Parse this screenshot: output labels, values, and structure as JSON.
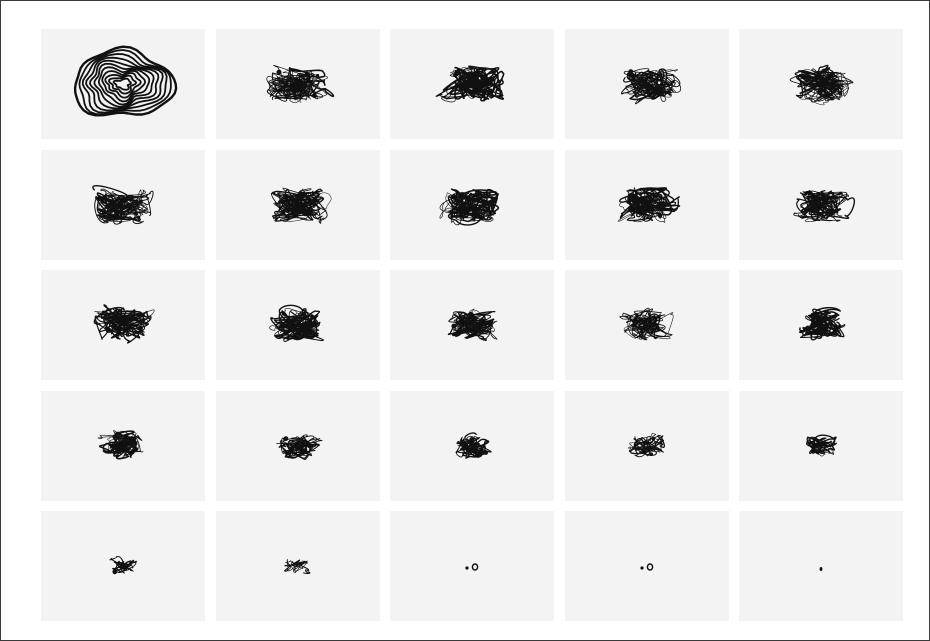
{
  "artwork": {
    "grid": {
      "columns": 5,
      "rows": 5
    },
    "tile_background": "#f3f3f3",
    "ink_color": "#111111",
    "sequence": [
      {
        "stage": 1,
        "form": "concentric-contour-lines",
        "density": 1.0
      },
      {
        "stage": 2,
        "form": "tangled-scribble",
        "density": 0.92
      },
      {
        "stage": 3,
        "form": "tangled-scribble",
        "density": 0.9
      },
      {
        "stage": 4,
        "form": "tangled-scribble",
        "density": 0.9
      },
      {
        "stage": 5,
        "form": "tangled-scribble",
        "density": 0.92
      },
      {
        "stage": 6,
        "form": "tangled-scribble",
        "density": 0.88
      },
      {
        "stage": 7,
        "form": "tangled-scribble",
        "density": 0.85
      },
      {
        "stage": 8,
        "form": "tangled-scribble",
        "density": 0.86
      },
      {
        "stage": 9,
        "form": "tangled-scribble",
        "density": 0.86
      },
      {
        "stage": 10,
        "form": "tangled-scribble",
        "density": 0.82
      },
      {
        "stage": 11,
        "form": "tangled-scribble",
        "density": 0.84
      },
      {
        "stage": 12,
        "form": "tangled-scribble",
        "density": 0.78
      },
      {
        "stage": 13,
        "form": "tangled-scribble",
        "density": 0.75
      },
      {
        "stage": 14,
        "form": "tangled-scribble",
        "density": 0.68
      },
      {
        "stage": 15,
        "form": "tangled-scribble",
        "density": 0.66
      },
      {
        "stage": 16,
        "form": "tangled-scribble",
        "density": 0.58
      },
      {
        "stage": 17,
        "form": "tangled-scribble",
        "density": 0.58
      },
      {
        "stage": 18,
        "form": "tangled-scribble",
        "density": 0.48
      },
      {
        "stage": 19,
        "form": "tangled-scribble",
        "density": 0.42
      },
      {
        "stage": 20,
        "form": "tangled-scribble",
        "density": 0.34
      },
      {
        "stage": 21,
        "form": "small-scribble",
        "density": 0.22
      },
      {
        "stage": 22,
        "form": "small-scribble",
        "density": 0.14
      },
      {
        "stage": 23,
        "form": "dot-pair",
        "density": 0.06
      },
      {
        "stage": 24,
        "form": "dot-pair",
        "density": 0.05
      },
      {
        "stage": 25,
        "form": "single-dot",
        "density": 0.02
      }
    ]
  }
}
